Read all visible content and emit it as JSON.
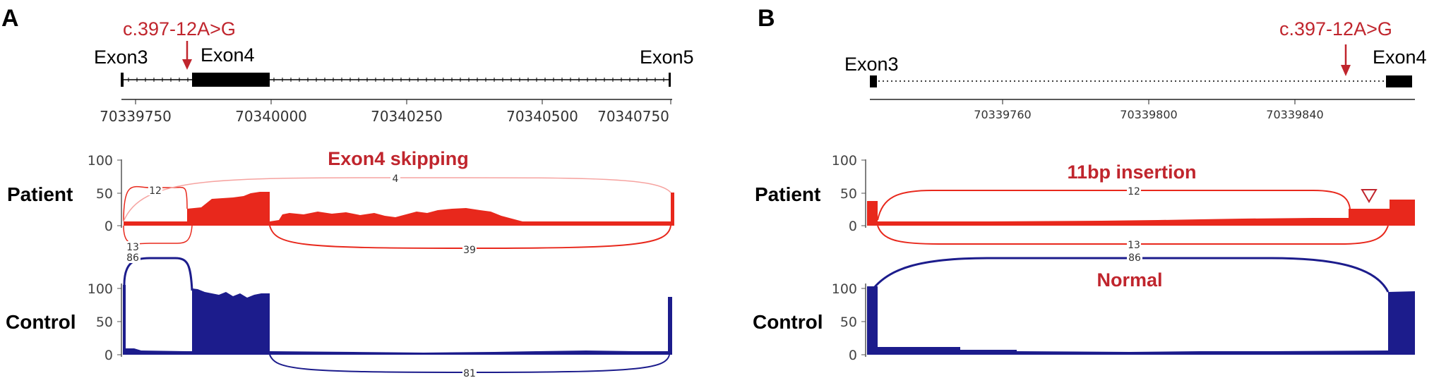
{
  "panels": [
    {
      "id": "A",
      "letter": "A",
      "variant": "c.397-12A>G",
      "exon_labels": [
        "Exon3",
        "Exon4",
        "Exon5"
      ],
      "axis_ticks": [
        "70339750",
        "70340000",
        "70340250",
        "70340500",
        "70340750"
      ],
      "annotations": [
        "Exon4 skipping"
      ],
      "tracks": [
        {
          "label": "Patient",
          "color": "#e8281c",
          "y_ticks": [
            "100",
            "50",
            "0"
          ],
          "junctions": [
            {
              "from": "Exon3",
              "to": "Exon4",
              "reads": "12",
              "side": "above"
            },
            {
              "from": "Exon3",
              "to": "Exon5",
              "reads": "4",
              "side": "above"
            },
            {
              "from": "Exon3",
              "to": "Exon4",
              "reads": "13",
              "side": "below"
            },
            {
              "from": "Exon4",
              "to": "Exon5",
              "reads": "39",
              "side": "below"
            }
          ]
        },
        {
          "label": "Control",
          "color": "#1c1c8c",
          "y_ticks": [
            "100",
            "50",
            "0"
          ],
          "junctions": [
            {
              "from": "Exon3",
              "to": "Exon4",
              "reads": "86",
              "side": "above"
            },
            {
              "from": "Exon4",
              "to": "Exon5",
              "reads": "81",
              "side": "below"
            }
          ]
        }
      ]
    },
    {
      "id": "B",
      "letter": "B",
      "variant": "c.397-12A>G",
      "exon_labels": [
        "Exon3",
        "Exon4"
      ],
      "axis_ticks": [
        "70339760",
        "70339800",
        "70339840"
      ],
      "annotations": [
        "11bp insertion",
        "Normal"
      ],
      "tracks": [
        {
          "label": "Patient",
          "color": "#e8281c",
          "y_ticks": [
            "100",
            "50",
            "0"
          ],
          "junctions": [
            {
              "from": "Exon3",
              "to": "Exon4 (cryptic)",
              "reads": "12",
              "side": "above"
            },
            {
              "from": "Exon3",
              "to": "Exon4",
              "reads": "13",
              "side": "below"
            }
          ]
        },
        {
          "label": "Control",
          "color": "#1c1c8c",
          "y_ticks": [
            "100",
            "50",
            "0"
          ],
          "junctions": [
            {
              "from": "Exon3",
              "to": "Exon4",
              "reads": "86",
              "side": "above"
            }
          ]
        }
      ]
    }
  ]
}
